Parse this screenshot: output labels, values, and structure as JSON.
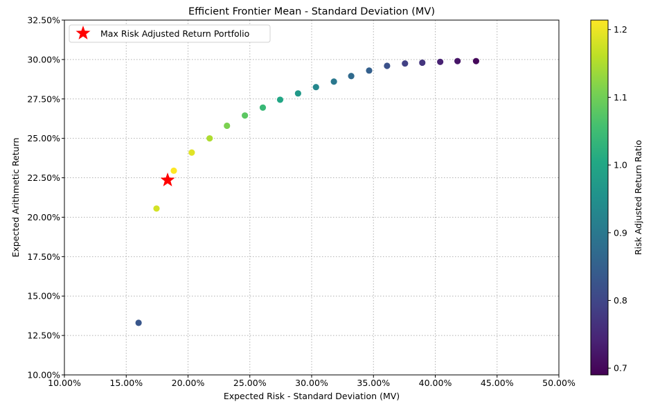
{
  "chart_data": {
    "type": "scatter",
    "title": "Efficient Frontier Mean - Standard Deviation (MV)",
    "xlabel": "Expected Risk - Standard Deviation (MV)",
    "ylabel": "Expected Arithmetic Return",
    "xlim": [
      10,
      50
    ],
    "ylim": [
      10,
      32.5
    ],
    "xticks": [
      "10.00%",
      "15.00%",
      "20.00%",
      "25.00%",
      "30.00%",
      "35.00%",
      "40.00%",
      "45.00%",
      "50.00%"
    ],
    "yticks": [
      "10.00%",
      "12.50%",
      "15.00%",
      "17.50%",
      "20.00%",
      "22.50%",
      "25.00%",
      "27.50%",
      "30.00%",
      "32.50%"
    ],
    "grid": true,
    "colorbar": {
      "label": "Risk Adjusted Return Ratio",
      "colormap": "viridis",
      "range": [
        0.69,
        1.214
      ],
      "ticks": [
        "0.7",
        "0.8",
        "0.9",
        "1.0",
        "1.1",
        "1.2"
      ]
    },
    "legend": {
      "placement": "top-left",
      "entries": [
        "Max Risk Adjusted Return Portfolio"
      ]
    },
    "points": [
      {
        "x": 16.0,
        "y": 13.3,
        "c": 0.83
      },
      {
        "x": 17.45,
        "y": 20.55,
        "c": 1.18
      },
      {
        "x": 18.85,
        "y": 22.95,
        "c": 1.214
      },
      {
        "x": 20.3,
        "y": 24.1,
        "c": 1.19
      },
      {
        "x": 21.75,
        "y": 25.0,
        "c": 1.15
      },
      {
        "x": 23.15,
        "y": 25.8,
        "c": 1.11
      },
      {
        "x": 24.6,
        "y": 26.45,
        "c": 1.08
      },
      {
        "x": 26.05,
        "y": 26.95,
        "c": 1.04
      },
      {
        "x": 27.45,
        "y": 27.45,
        "c": 1.0
      },
      {
        "x": 28.9,
        "y": 27.85,
        "c": 0.97
      },
      {
        "x": 30.35,
        "y": 28.25,
        "c": 0.93
      },
      {
        "x": 31.8,
        "y": 28.6,
        "c": 0.9
      },
      {
        "x": 33.2,
        "y": 28.95,
        "c": 0.87
      },
      {
        "x": 34.65,
        "y": 29.3,
        "c": 0.85
      },
      {
        "x": 36.1,
        "y": 29.6,
        "c": 0.82
      },
      {
        "x": 37.55,
        "y": 29.75,
        "c": 0.79
      },
      {
        "x": 38.95,
        "y": 29.8,
        "c": 0.77
      },
      {
        "x": 40.4,
        "y": 29.85,
        "c": 0.74
      },
      {
        "x": 41.8,
        "y": 29.9,
        "c": 0.72
      },
      {
        "x": 43.3,
        "y": 29.9,
        "c": 0.7
      }
    ],
    "highlight": {
      "label": "Max Risk Adjusted Return Portfolio",
      "x": 18.35,
      "y": 22.35,
      "color": "#ff0000"
    }
  }
}
